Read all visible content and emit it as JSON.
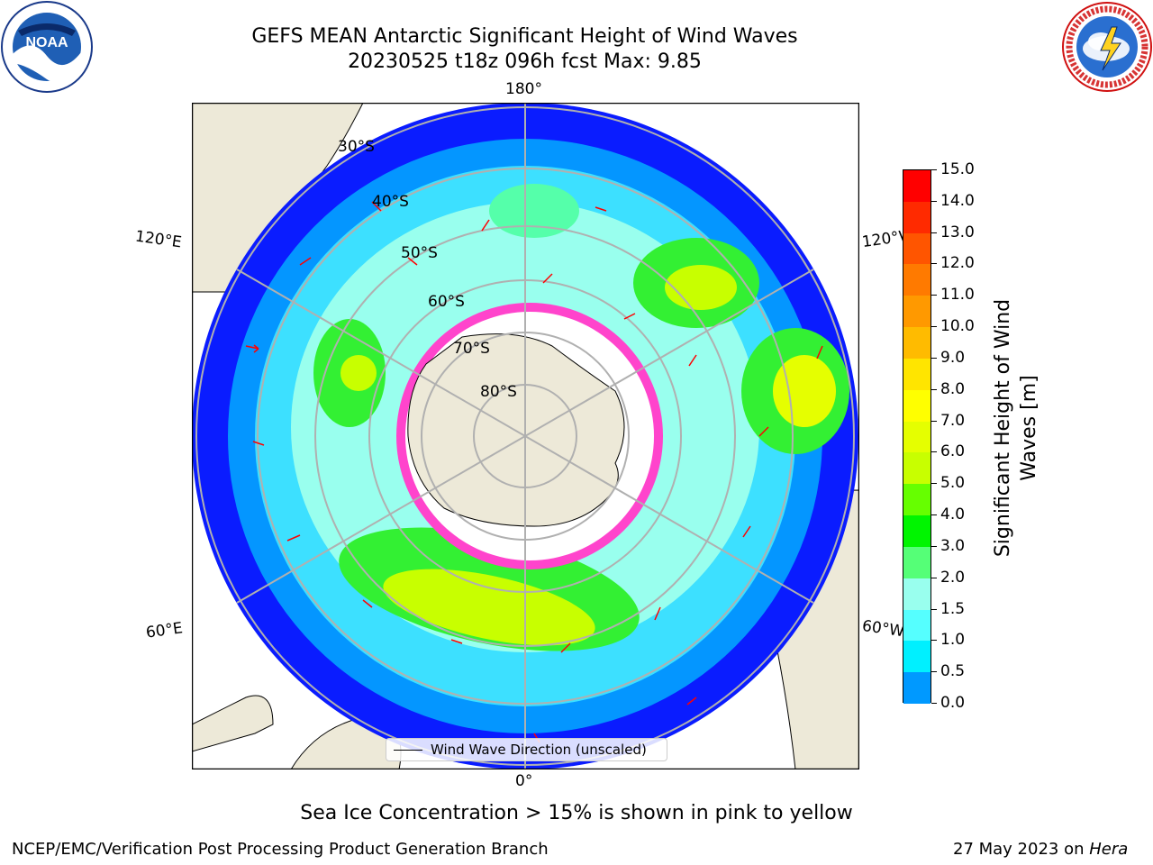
{
  "title_line1": "GEFS MEAN Antarctic Significant Height of Wind Waves",
  "title_line2": "20230525 t18z 096h fcst   Max: 9.85",
  "map": {
    "lon_labels": {
      "top": "180°",
      "bottom": "0°",
      "upper_left": "120°E",
      "lower_left": "60°E",
      "upper_right": "120°W",
      "lower_right": "60°W"
    },
    "lat_labels": [
      "30°S",
      "40°S",
      "50°S",
      "60°S",
      "70°S",
      "80°S"
    ],
    "legend_label": "Wind Wave Direction (unscaled)"
  },
  "colorbar": {
    "title_line1": "Significant Height of Wind",
    "title_line2": "Waves [m]",
    "ticks": [
      "15.0",
      "14.0",
      "13.0",
      "12.0",
      "11.0",
      "10.0",
      "9.0",
      "8.0",
      "7.0",
      "6.0",
      "5.0",
      "4.0",
      "3.0",
      "2.0",
      "1.5",
      "1.0",
      "0.5",
      "0.0"
    ],
    "colors": [
      "#ff0000",
      "#ff2a00",
      "#ff5500",
      "#ff7a00",
      "#ff9900",
      "#ffbb00",
      "#ffe500",
      "#ffff00",
      "#e5ff00",
      "#c8ff00",
      "#66ff00",
      "#00f500",
      "#55ff77",
      "#99ffee",
      "#55ffff",
      "#00f0ff",
      "#0099ff",
      "#0000ff"
    ]
  },
  "subtitle": "Sea Ice Concentration > 15% is shown in pink to yellow",
  "credit": "NCEP/EMC/Verification Post Processing Product Generation Branch",
  "date_prefix": "27 May 2023 on ",
  "date_host": "Hera",
  "logos": {
    "noaa_text": "NOAA",
    "nws_text": "NATIONAL WEATHER SERVICE"
  }
}
